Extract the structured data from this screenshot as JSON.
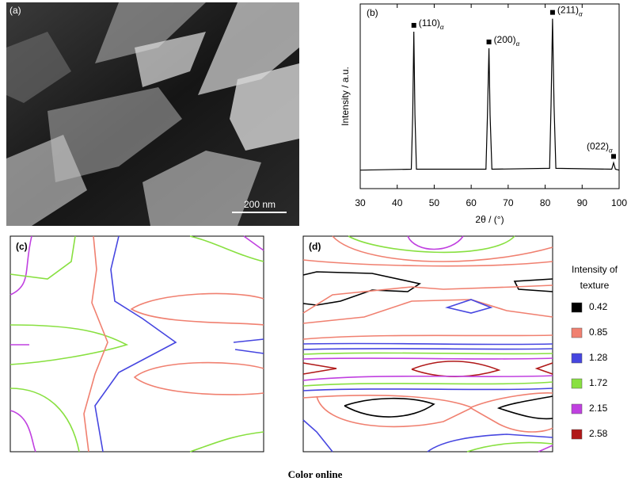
{
  "panel_a": {
    "label": "(a)",
    "scale_bar": "200 nm"
  },
  "chart_data": {
    "type": "line",
    "label": "(b)",
    "xlabel": "2θ / (°)",
    "ylabel": "Intensity / a.u.",
    "xlim": [
      30,
      100
    ],
    "xticks": [
      30,
      40,
      50,
      60,
      70,
      80,
      90,
      100
    ],
    "ylim": [
      0,
      100
    ],
    "color": "#000000",
    "x": [
      30,
      43.8,
      44.2,
      44.5,
      44.8,
      45.2,
      64.0,
      64.4,
      64.8,
      65.1,
      65.6,
      81.2,
      81.6,
      82.0,
      82.4,
      82.9,
      98.0,
      98.5,
      99.0,
      100
    ],
    "values": [
      10,
      10.5,
      40,
      85,
      40,
      10.5,
      10.5,
      40,
      76,
      40,
      10.5,
      11,
      45,
      92,
      45,
      11,
      10.5,
      14,
      10.5,
      10
    ],
    "annotations": [
      {
        "text": "(110)",
        "sub": "α"
      },
      {
        "text": "(200)",
        "sub": "α"
      },
      {
        "text": "(211)",
        "sub": "α"
      },
      {
        "text": "(022)",
        "sub": "α"
      }
    ]
  },
  "panel_c": {
    "label": "(c)"
  },
  "panel_d": {
    "label": "(d)"
  },
  "legend": {
    "title": "Intensity of texture",
    "levels": [
      {
        "value": 0.42,
        "color": "#000000"
      },
      {
        "value": 0.85,
        "color": "#f08070"
      },
      {
        "value": 1.28,
        "color": "#4646e0"
      },
      {
        "value": 1.72,
        "color": "#88e040"
      },
      {
        "value": 2.15,
        "color": "#c040e0"
      },
      {
        "value": 2.58,
        "color": "#b01818"
      }
    ]
  },
  "caption": "Color online"
}
